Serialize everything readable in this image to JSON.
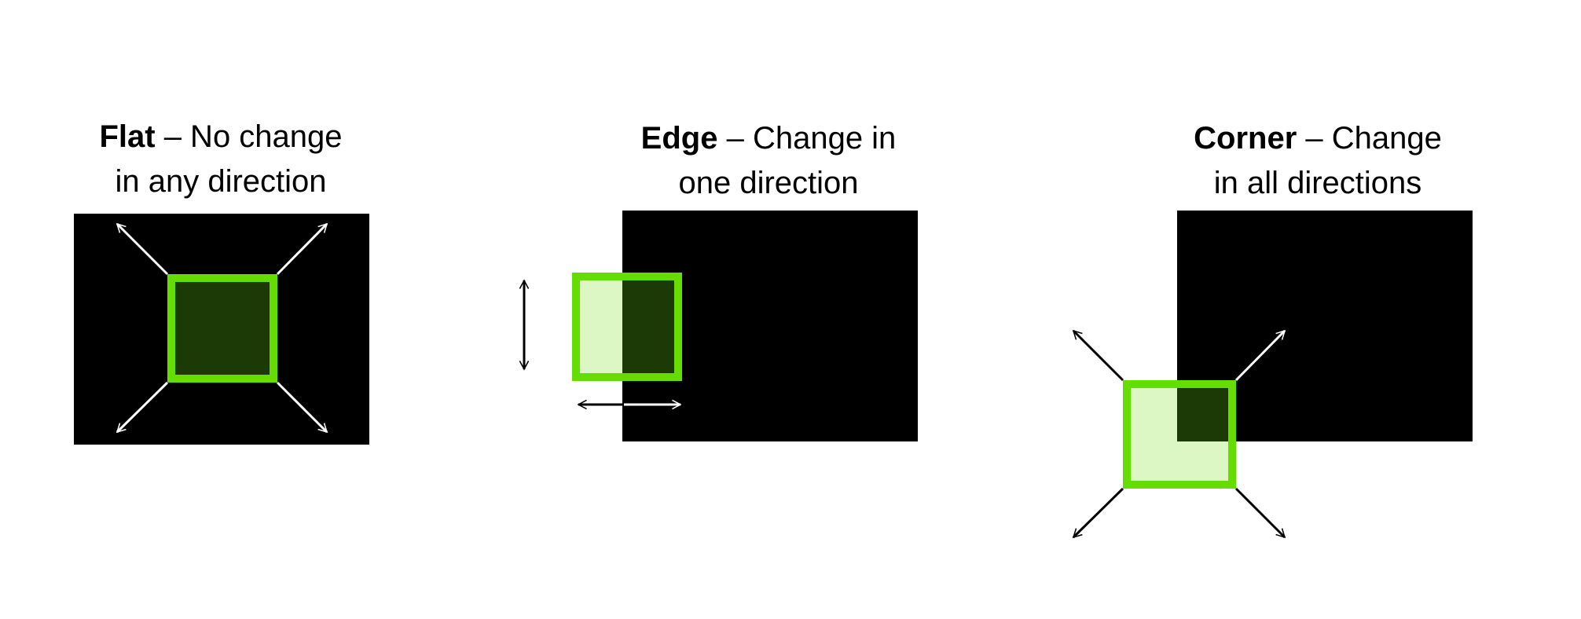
{
  "panels": [
    {
      "id": "flat",
      "label_bold": "Flat",
      "label_rest_line1": " – No change",
      "label_line2": "in any direction"
    },
    {
      "id": "edge",
      "label_bold": "Edge",
      "label_rest_line1": " – Change in",
      "label_line2": "one direction"
    },
    {
      "id": "corner",
      "label_bold": "Corner",
      "label_rest_line1": " – Change",
      "label_line2": "in all directions"
    }
  ],
  "colors": {
    "region": "#000000",
    "window_border": "#66dd00",
    "window_fill_over_dark": "#1c3a05",
    "window_fill_over_light": "#dcf7c4",
    "arrow_on_dark": "#ffffff",
    "arrow_on_light": "#000000",
    "text": "#000000",
    "background": "#ffffff"
  }
}
